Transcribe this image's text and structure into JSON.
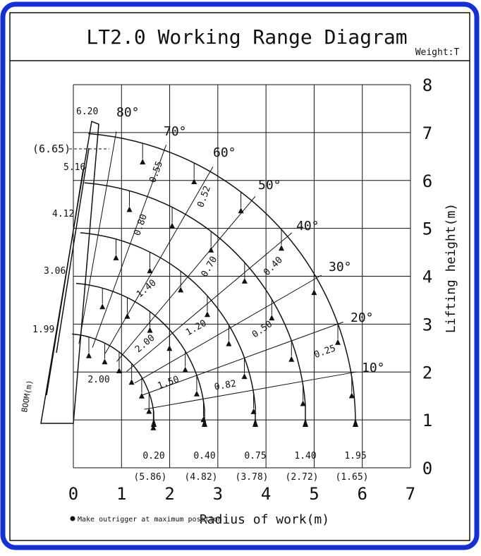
{
  "header": {
    "title": "LT2.0 Working Range Diagram",
    "unit": "Weight:T"
  },
  "axes": {
    "x_label": "Radius of work(m)",
    "y_label": "Lifting height(m)",
    "xticks": [
      0,
      1,
      2,
      3,
      4,
      5,
      6,
      7
    ],
    "yticks": [
      0,
      1,
      2,
      3,
      4,
      5,
      6,
      7,
      8
    ]
  },
  "angles": [
    "80°",
    "70°",
    "60°",
    "50°",
    "40°",
    "30°",
    "20°",
    "10°"
  ],
  "boom_lengths": [
    "6.20",
    "(6.65)",
    "5.16",
    "4.12",
    "3.06",
    "1.99"
  ],
  "boom_label": "BOOM(m)",
  "end_loads": [
    "1.95",
    "1.40",
    "0.75",
    "0.40",
    "0.20"
  ],
  "end_radii": [
    "(1.65)",
    "(2.72)",
    "(3.78)",
    "(4.82)",
    "(5.86)"
  ],
  "loads": [
    "0.55",
    "0.52",
    "0.80",
    "0.70",
    "0.40",
    "1.40",
    "1.20",
    "0.50",
    "0.25",
    "2.00",
    "2.00",
    "1.50",
    "0.82"
  ],
  "note": "Make outrigger at maximum position"
}
